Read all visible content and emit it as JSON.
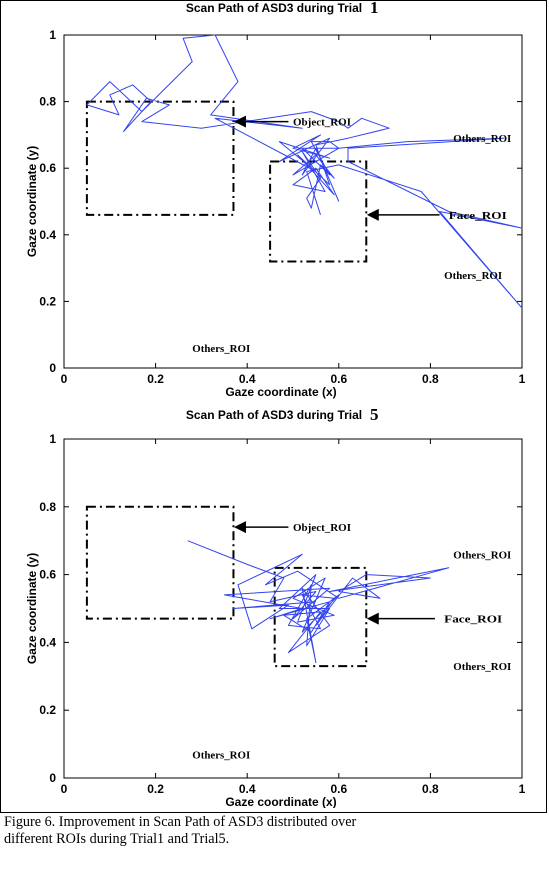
{
  "chart_data": [
    {
      "type": "line",
      "title": "Scan Path of ASD3 during Trial",
      "title_trial": "1",
      "xlabel": "Gaze coordinate (x)",
      "ylabel": "Gaze coordinate (y)",
      "xlim": [
        0,
        1
      ],
      "ylim": [
        0,
        1
      ],
      "xticks": [
        "0",
        "0.2",
        "0.4",
        "0.6",
        "0.8",
        "1"
      ],
      "yticks": [
        "0",
        "0.2",
        "0.4",
        "0.6",
        "0.8",
        "1"
      ],
      "line_color": "#3344ee",
      "roi_boxes": [
        {
          "name": "Object_ROI",
          "x0": 0.05,
          "x1": 0.37,
          "y0": 0.46,
          "y1": 0.8
        },
        {
          "name": "Face_ROI",
          "x0": 0.45,
          "x1": 0.66,
          "y0": 0.32,
          "y1": 0.62
        }
      ],
      "arrows": [
        {
          "x_tail": 0.49,
          "x_head": 0.37,
          "y": 0.74
        },
        {
          "x_tail": 0.82,
          "x_head": 0.66,
          "y": 0.46
        }
      ],
      "annotations": [
        {
          "text": "Object_ROI",
          "x": 0.5,
          "y": 0.74
        },
        {
          "text": "Others_ROI",
          "x": 0.85,
          "y": 0.69
        },
        {
          "text": "Face_ROI",
          "x": 0.84,
          "y": 0.46
        },
        {
          "text": "Others_ROI",
          "x": 0.83,
          "y": 0.28
        },
        {
          "text": "Others_ROI",
          "x": 0.28,
          "y": 0.06
        }
      ],
      "path": [
        [
          0.6,
          0.5
        ],
        [
          0.55,
          0.66
        ],
        [
          0.52,
          0.58
        ],
        [
          0.58,
          0.69
        ],
        [
          0.47,
          0.62
        ],
        [
          0.56,
          0.7
        ],
        [
          0.5,
          0.66
        ],
        [
          0.58,
          0.63
        ],
        [
          0.47,
          0.68
        ],
        [
          0.55,
          0.59
        ],
        [
          0.33,
          0.75
        ],
        [
          0.52,
          0.72
        ],
        [
          0.32,
          0.76
        ],
        [
          0.38,
          0.86
        ],
        [
          0.33,
          1.0
        ],
        [
          0.26,
          0.99
        ],
        [
          0.28,
          0.92
        ],
        [
          0.17,
          0.77
        ],
        [
          0.1,
          0.86
        ],
        [
          0.05,
          0.79
        ],
        [
          0.12,
          0.76
        ],
        [
          0.1,
          0.82
        ],
        [
          0.15,
          0.85
        ],
        [
          0.19,
          0.8
        ],
        [
          0.13,
          0.71
        ],
        [
          0.18,
          0.81
        ],
        [
          0.23,
          0.79
        ],
        [
          0.17,
          0.74
        ],
        [
          0.3,
          0.72
        ],
        [
          0.54,
          0.77
        ],
        [
          0.6,
          0.74
        ],
        [
          0.62,
          0.72
        ],
        [
          0.65,
          0.75
        ],
        [
          0.71,
          0.72
        ],
        [
          0.62,
          0.69
        ],
        [
          0.55,
          0.67
        ],
        [
          0.58,
          0.55
        ],
        [
          0.51,
          0.64
        ],
        [
          0.59,
          0.52
        ],
        [
          0.55,
          0.6
        ],
        [
          0.5,
          0.55
        ],
        [
          0.57,
          0.53
        ],
        [
          0.52,
          0.65
        ],
        [
          0.56,
          0.57
        ],
        [
          0.53,
          0.51
        ],
        [
          0.54,
          0.48
        ],
        [
          0.56,
          0.61
        ],
        [
          0.59,
          0.57
        ],
        [
          0.55,
          0.64
        ],
        [
          0.5,
          0.58
        ],
        [
          0.6,
          0.66
        ],
        [
          0.52,
          0.66
        ],
        [
          0.58,
          0.58
        ],
        [
          0.54,
          0.68
        ],
        [
          0.58,
          0.68
        ],
        [
          0.6,
          0.66
        ],
        [
          0.75,
          0.68
        ],
        [
          0.96,
          0.69
        ],
        [
          0.62,
          0.66
        ],
        [
          0.62,
          0.62
        ],
        [
          0.84,
          0.47
        ],
        [
          1.0,
          0.42
        ],
        [
          0.82,
          0.47
        ],
        [
          1.0,
          0.18
        ],
        [
          0.78,
          0.53
        ],
        [
          0.6,
          0.61
        ],
        [
          0.53,
          0.59
        ],
        [
          0.56,
          0.46
        ]
      ]
    },
    {
      "type": "line",
      "title": "Scan Path of ASD3 during Trial",
      "title_trial": "5",
      "xlabel": "Gaze coordinate (x)",
      "ylabel": "Gaze coordinate (y)",
      "xlim": [
        0,
        1
      ],
      "ylim": [
        0,
        1
      ],
      "xticks": [
        "0",
        "0.2",
        "0.4",
        "0.6",
        "0.8",
        "1"
      ],
      "yticks": [
        "0",
        "0.2",
        "0.4",
        "0.6",
        "0.8",
        "1"
      ],
      "line_color": "#3344ee",
      "roi_boxes": [
        {
          "name": "Object_ROI",
          "x0": 0.05,
          "x1": 0.37,
          "y0": 0.47,
          "y1": 0.8
        },
        {
          "name": "Face_ROI",
          "x0": 0.46,
          "x1": 0.66,
          "y0": 0.33,
          "y1": 0.62
        }
      ],
      "arrows": [
        {
          "x_tail": 0.49,
          "x_head": 0.37,
          "y": 0.74
        },
        {
          "x_tail": 0.81,
          "x_head": 0.66,
          "y": 0.47
        }
      ],
      "annotations": [
        {
          "text": "Object_ROI",
          "x": 0.5,
          "y": 0.74
        },
        {
          "text": "Others_ROI",
          "x": 0.85,
          "y": 0.66
        },
        {
          "text": "Face_ROI",
          "x": 0.83,
          "y": 0.47
        },
        {
          "text": "Others_ROI",
          "x": 0.85,
          "y": 0.33
        },
        {
          "text": "Others_ROI",
          "x": 0.28,
          "y": 0.07
        }
      ],
      "path": [
        [
          0.27,
          0.7
        ],
        [
          0.4,
          0.63
        ],
        [
          0.48,
          0.59
        ],
        [
          0.45,
          0.52
        ],
        [
          0.55,
          0.55
        ],
        [
          0.5,
          0.47
        ],
        [
          0.58,
          0.56
        ],
        [
          0.35,
          0.54
        ],
        [
          0.52,
          0.5
        ],
        [
          0.45,
          0.47
        ],
        [
          0.58,
          0.52
        ],
        [
          0.54,
          0.43
        ],
        [
          0.48,
          0.48
        ],
        [
          0.56,
          0.49
        ],
        [
          0.49,
          0.37
        ],
        [
          0.58,
          0.45
        ],
        [
          0.52,
          0.56
        ],
        [
          0.55,
          0.34
        ],
        [
          0.53,
          0.47
        ],
        [
          0.6,
          0.54
        ],
        [
          0.52,
          0.43
        ],
        [
          0.57,
          0.59
        ],
        [
          0.5,
          0.53
        ],
        [
          0.59,
          0.48
        ],
        [
          0.51,
          0.46
        ],
        [
          0.55,
          0.6
        ],
        [
          0.47,
          0.5
        ],
        [
          0.58,
          0.5
        ],
        [
          0.53,
          0.39
        ],
        [
          0.54,
          0.57
        ],
        [
          0.49,
          0.45
        ],
        [
          0.56,
          0.44
        ],
        [
          0.52,
          0.54
        ],
        [
          0.59,
          0.53
        ],
        [
          0.55,
          0.45
        ],
        [
          0.63,
          0.59
        ],
        [
          0.69,
          0.53
        ],
        [
          0.6,
          0.55
        ],
        [
          0.66,
          0.6
        ],
        [
          0.8,
          0.59
        ],
        [
          0.58,
          0.55
        ],
        [
          0.84,
          0.62
        ],
        [
          0.6,
          0.53
        ],
        [
          0.51,
          0.61
        ],
        [
          0.44,
          0.57
        ],
        [
          0.52,
          0.66
        ],
        [
          0.38,
          0.57
        ],
        [
          0.41,
          0.44
        ],
        [
          0.49,
          0.51
        ],
        [
          0.37,
          0.5
        ],
        [
          0.55,
          0.52
        ]
      ]
    }
  ],
  "caption": {
    "line1": "Figure 6.  Improvement in Scan Path of ASD3 distributed over",
    "line2": "different ROIs during Trial1 and Trial5."
  }
}
